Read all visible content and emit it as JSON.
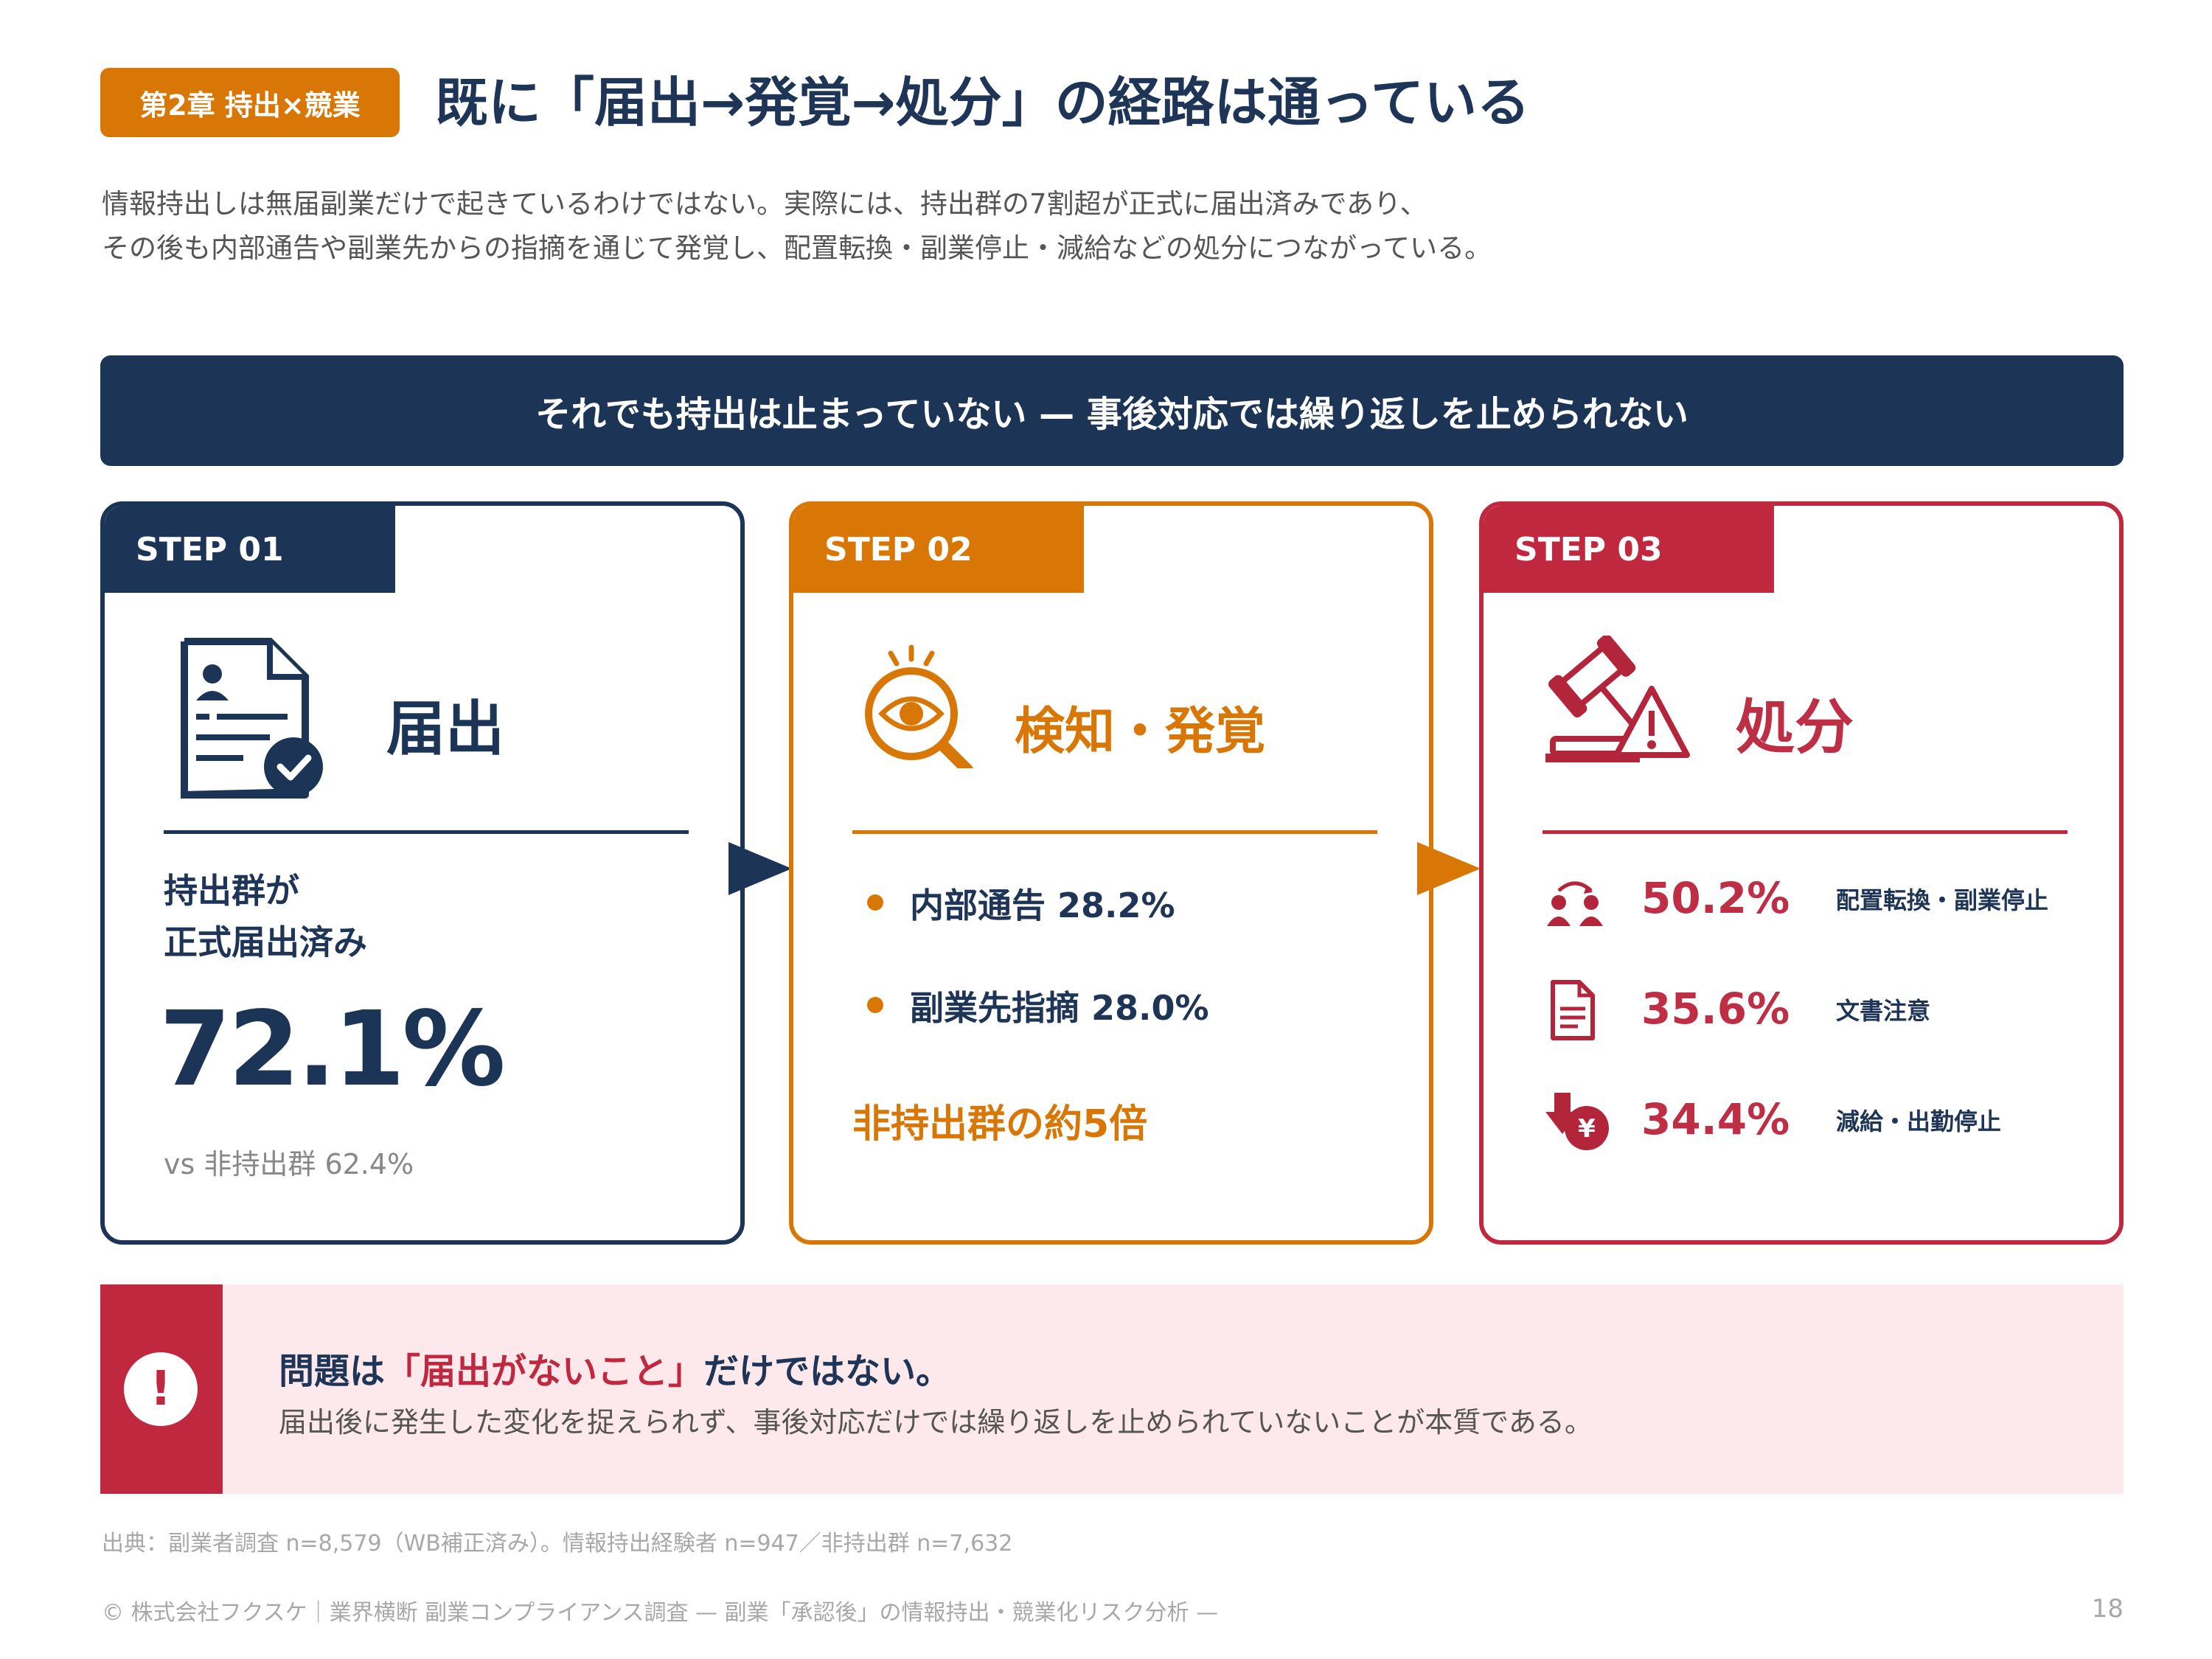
{
  "header": {
    "chapter": "第2章 持出×競業",
    "title": "既に「届出→発覚→処分」の経路は通っている",
    "intro_line1": "情報持出しは無届副業だけで起きているわけではない。実際には、持出群の7割超が正式に届出済みであり、",
    "intro_line2": "その後も内部通告や副業先からの指摘を通じて発覚し、配置転換・副業停止・減給などの処分につながっている。"
  },
  "banner": "それでも持出は止まっていない — 事後対応では繰り返しを止められない",
  "colors": {
    "navy": "#1c3557",
    "orange": "#d97706",
    "red": "#c0283f"
  },
  "steps": [
    {
      "tab": "STEP 01",
      "icon": "document-check-icon",
      "title": "届出",
      "label_line1": "持出群が",
      "label_line2": "正式届出済み",
      "value": "72.1%",
      "compare": "vs 非持出群 62.4%"
    },
    {
      "tab": "STEP 02",
      "icon": "magnifier-eye-icon",
      "title": "検知・発覚",
      "bullets": [
        "内部通告 28.2%",
        "副業先指摘 28.0%"
      ],
      "note": "非持出群の約5倍"
    },
    {
      "tab": "STEP 03",
      "icon": "gavel-warning-icon",
      "title": "処分",
      "items": [
        {
          "icon": "people-transfer-icon",
          "value": "50.2%",
          "label": "配置転換・副業停止"
        },
        {
          "icon": "document-icon",
          "value": "35.6%",
          "label": "文書注意"
        },
        {
          "icon": "salary-down-icon",
          "value": "34.4%",
          "label": "減給・出勤停止"
        }
      ]
    }
  ],
  "alert": {
    "title_prefix": "問題は",
    "title_highlight": "「届出がないこと」",
    "title_suffix": "だけではない。",
    "body": "届出後に発生した変化を捉えられず、事後対応だけでは繰り返しを止められていないことが本質である。"
  },
  "source": "出典：副業者調査 n=8,579（WB補正済み）。情報持出経験者 n=947／非持出群 n=7,632",
  "footer": "© 株式会社フクスケ｜業界横断 副業コンプライアンス調査 — 副業「承認後」の情報持出・競業化リスク分析 —",
  "page_number": "18"
}
